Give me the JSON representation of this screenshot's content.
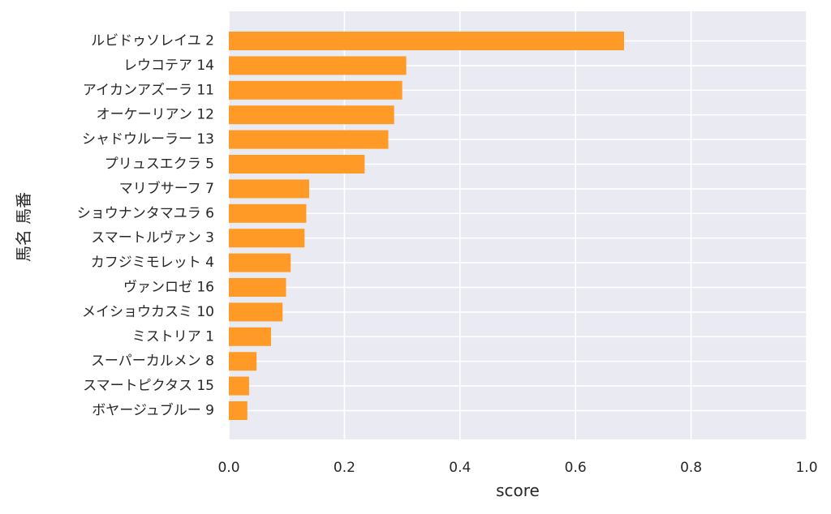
{
  "chart_data": {
    "type": "bar",
    "orientation": "horizontal",
    "categories": [
      "ルビドゥソレイユ 2",
      "レウコテア 14",
      "アイカンアズーラ 11",
      "オーケーリアン 12",
      "シャドウルーラー 13",
      "プリュスエクラ 5",
      "マリブサーフ 7",
      "ショウナンタマユラ 6",
      "スマートルヴァン 3",
      "カフジミモレット 4",
      "ヴァンロゼ 16",
      "メイショウカスミ 10",
      "ミストリア 1",
      "スーパーカルメン 8",
      "スマートピクタス 15",
      "ボヤージュブルー 9"
    ],
    "values": [
      0.684,
      0.307,
      0.3,
      0.286,
      0.276,
      0.235,
      0.139,
      0.134,
      0.131,
      0.107,
      0.099,
      0.093,
      0.073,
      0.048,
      0.035,
      0.032
    ],
    "xlabel": "score",
    "ylabel": "馬名 馬番",
    "xlim": [
      0,
      1.0
    ],
    "xticks": [
      "0.0",
      "0.2",
      "0.4",
      "0.6",
      "0.8",
      "1.0"
    ],
    "grid": true,
    "colors": {
      "bar": "#ff9a26",
      "plot_bg": "#eaeaf2",
      "grid": "#ffffff",
      "text": "#262626"
    }
  }
}
